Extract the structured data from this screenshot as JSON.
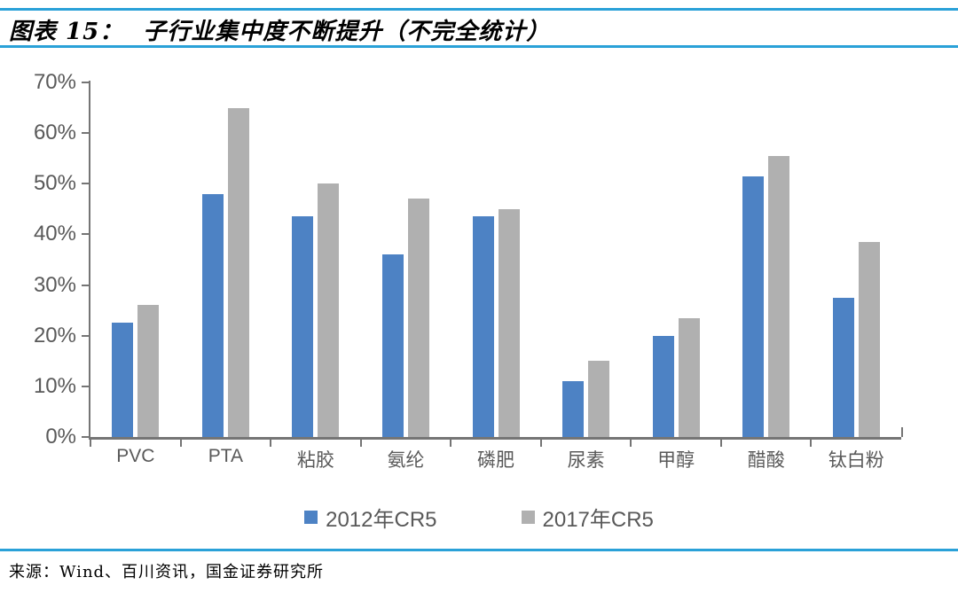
{
  "header": {
    "fig_label": "图表 15：",
    "fig_title": "子行业集中度不断提升（不完全统计）"
  },
  "chart_data": {
    "type": "bar",
    "title": "子行业集中度不断提升（不完全统计）",
    "categories": [
      "PVC",
      "PTA",
      "粘胶",
      "氨纶",
      "磷肥",
      "尿素",
      "甲醇",
      "醋酸",
      "钛白粉"
    ],
    "series": [
      {
        "name": "2012年CR5",
        "color": "#4D82C4",
        "values": [
          22.5,
          48,
          43.5,
          36,
          43.5,
          11,
          20,
          51.5,
          27.5
        ]
      },
      {
        "name": "2017年CR5",
        "color": "#B0B0B0",
        "values": [
          26,
          65,
          50,
          47,
          45,
          15,
          23.5,
          55.5,
          38.5
        ]
      }
    ],
    "xlabel": "",
    "ylabel": "",
    "ylim": [
      0,
      70
    ],
    "ytick_labels": [
      "0%",
      "10%",
      "20%",
      "30%",
      "40%",
      "50%",
      "60%",
      "70%"
    ],
    "grid": false,
    "legend_position": "bottom"
  },
  "footer": {
    "source": "来源：Wind、百川资讯，国金证券研究所"
  },
  "colors": {
    "accent_rule": "#2AA1D8",
    "axis": "#757575",
    "tick_label": "#595959"
  }
}
